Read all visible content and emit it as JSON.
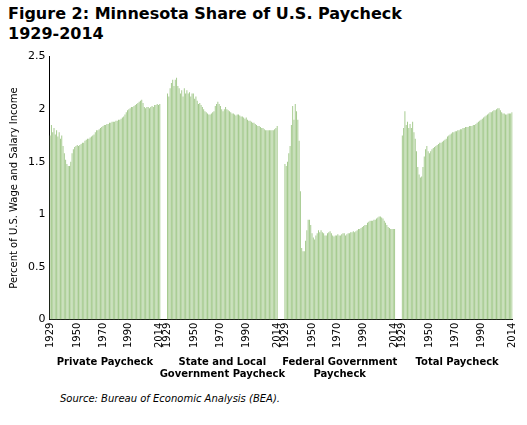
{
  "chart_data": {
    "type": "bar",
    "title": "Figure 2: Minnesota Share of U.S. Paycheck 1929-2014",
    "y_label": "Percent of U.S. Wage and Salary Income",
    "source": "Source: Bureau of Economic Analysis (BEA).",
    "color": "#a3c98c",
    "grid": false,
    "ylim": [
      0,
      2.5
    ],
    "yticks": [
      0,
      0.5,
      1,
      1.5,
      2,
      2.5
    ],
    "categories": [
      "1929",
      null,
      null,
      null,
      null,
      null,
      null,
      null,
      null,
      null,
      null,
      null,
      null,
      null,
      null,
      null,
      null,
      null,
      null,
      null,
      null,
      "1950",
      null,
      null,
      null,
      null,
      null,
      null,
      null,
      null,
      null,
      null,
      null,
      null,
      null,
      null,
      null,
      null,
      null,
      null,
      null,
      "1970",
      null,
      null,
      null,
      null,
      null,
      null,
      null,
      null,
      null,
      null,
      null,
      null,
      null,
      null,
      null,
      null,
      null,
      null,
      null,
      "1990",
      null,
      null,
      null,
      null,
      null,
      null,
      null,
      null,
      null,
      null,
      null,
      null,
      null,
      null,
      null,
      null,
      null,
      null,
      null,
      null,
      null,
      null,
      null,
      "2014"
    ],
    "groups": [
      {
        "label": "Private Paycheck",
        "values": [
          1.75,
          1.85,
          1.78,
          1.82,
          1.76,
          1.8,
          1.74,
          1.78,
          1.72,
          1.75,
          1.65,
          1.58,
          1.52,
          1.48,
          1.46,
          1.46,
          1.5,
          1.58,
          1.62,
          1.64,
          1.65,
          1.66,
          1.65,
          1.66,
          1.67,
          1.68,
          1.68,
          1.7,
          1.71,
          1.72,
          1.72,
          1.73,
          1.74,
          1.75,
          1.76,
          1.78,
          1.8,
          1.8,
          1.81,
          1.82,
          1.83,
          1.84,
          1.85,
          1.85,
          1.86,
          1.86,
          1.87,
          1.87,
          1.88,
          1.88,
          1.88,
          1.89,
          1.89,
          1.9,
          1.9,
          1.91,
          1.92,
          1.93,
          1.95,
          1.97,
          1.99,
          2.0,
          2.01,
          2.02,
          2.02,
          2.03,
          2.04,
          2.05,
          2.06,
          2.07,
          2.08,
          2.09,
          2.06,
          2.02,
          2.01,
          2.02,
          2.02,
          2.01,
          2.02,
          2.03,
          2.02,
          2.04,
          2.04,
          2.05,
          2.04,
          2.05
        ]
      },
      {
        "label": "State and Local Government Paycheck",
        "values": [
          2.15,
          2.12,
          2.2,
          2.25,
          2.28,
          2.22,
          2.28,
          2.3,
          2.22,
          2.2,
          2.15,
          2.18,
          2.12,
          2.2,
          2.15,
          2.18,
          2.15,
          2.16,
          2.12,
          2.15,
          2.15,
          2.1,
          2.12,
          2.08,
          2.05,
          2.06,
          2.04,
          2.02,
          2.0,
          1.98,
          1.97,
          1.96,
          1.95,
          1.95,
          1.96,
          1.97,
          1.98,
          2.03,
          2.05,
          2.07,
          2.05,
          2.03,
          2.0,
          1.98,
          2.0,
          2.02,
          2.0,
          1.99,
          1.98,
          1.97,
          1.96,
          1.96,
          1.95,
          1.94,
          1.95,
          1.95,
          1.94,
          1.93,
          1.93,
          1.92,
          1.91,
          1.92,
          1.9,
          1.89,
          1.89,
          1.88,
          1.87,
          1.87,
          1.86,
          1.85,
          1.84,
          1.84,
          1.83,
          1.82,
          1.82,
          1.81,
          1.8,
          1.8,
          1.8,
          1.8,
          1.8,
          1.8,
          1.8,
          1.81,
          1.82,
          1.84
        ]
      },
      {
        "label": "Federal Government Paycheck",
        "values": [
          1.48,
          1.46,
          1.5,
          1.58,
          1.65,
          1.85,
          2.03,
          1.9,
          2.05,
          1.98,
          1.9,
          1.7,
          1.22,
          0.68,
          0.65,
          0.65,
          0.75,
          0.85,
          0.95,
          0.95,
          0.9,
          0.82,
          0.78,
          0.76,
          0.8,
          0.82,
          0.85,
          0.83,
          0.85,
          0.83,
          0.82,
          0.8,
          0.8,
          0.82,
          0.83,
          0.84,
          0.82,
          0.8,
          0.79,
          0.8,
          0.8,
          0.81,
          0.8,
          0.8,
          0.81,
          0.82,
          0.82,
          0.8,
          0.81,
          0.82,
          0.82,
          0.83,
          0.83,
          0.84,
          0.83,
          0.84,
          0.85,
          0.86,
          0.86,
          0.87,
          0.88,
          0.89,
          0.9,
          0.9,
          0.92,
          0.93,
          0.94,
          0.94,
          0.94,
          0.95,
          0.95,
          0.96,
          0.97,
          0.98,
          0.98,
          0.97,
          0.96,
          0.94,
          0.92,
          0.9,
          0.88,
          0.87,
          0.86,
          0.86,
          0.86,
          0.86
        ]
      },
      {
        "label": "Total Paycheck",
        "values": [
          1.75,
          1.82,
          1.98,
          1.85,
          1.88,
          1.82,
          1.86,
          1.82,
          1.88,
          1.78,
          1.72,
          1.6,
          1.45,
          1.38,
          1.35,
          1.36,
          1.45,
          1.55,
          1.62,
          1.65,
          1.6,
          1.58,
          1.6,
          1.62,
          1.63,
          1.64,
          1.65,
          1.66,
          1.67,
          1.68,
          1.68,
          1.69,
          1.7,
          1.71,
          1.72,
          1.74,
          1.75,
          1.76,
          1.77,
          1.78,
          1.78,
          1.79,
          1.79,
          1.8,
          1.8,
          1.81,
          1.81,
          1.82,
          1.82,
          1.83,
          1.83,
          1.83,
          1.84,
          1.84,
          1.84,
          1.85,
          1.85,
          1.86,
          1.87,
          1.88,
          1.89,
          1.9,
          1.91,
          1.92,
          1.93,
          1.94,
          1.95,
          1.96,
          1.97,
          1.97,
          1.98,
          1.99,
          1.99,
          2.0,
          2.01,
          2.01,
          1.99,
          1.97,
          1.96,
          1.96,
          1.95,
          1.95,
          1.96,
          1.96,
          1.96,
          1.97
        ]
      }
    ]
  }
}
